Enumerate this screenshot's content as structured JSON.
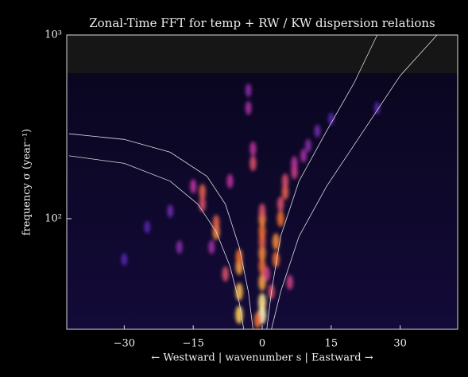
{
  "chart_data": {
    "type": "heatmap",
    "title": "Zonal-Time FFT for temp + RW / KW dispersion relations",
    "x_label": "← Westward | wavenumber s | Eastward →",
    "y_label": "frequency σ (year⁻¹)",
    "xlim": [
      -42.5,
      42.5
    ],
    "ylim": [
      25,
      1000
    ],
    "y_scale": "log",
    "xticks": [
      {
        "value": -30,
        "label": "−30"
      },
      {
        "value": -15,
        "label": "−15"
      },
      0,
      15,
      30
    ],
    "yticks": [
      {
        "value": 100,
        "label": "10²"
      },
      {
        "value": 1000,
        "label": "10³"
      }
    ],
    "intensity": {
      "x": [
        0,
        0,
        0,
        0,
        0,
        0,
        0,
        0,
        0,
        -5,
        -5,
        -5,
        -5,
        -8,
        -10,
        -10,
        -13,
        -13,
        -15,
        -2,
        -2,
        -3,
        -3,
        3,
        3,
        4,
        4,
        5,
        5,
        7,
        7,
        2,
        -1,
        1,
        -20,
        -25,
        10,
        12,
        -18,
        9,
        -7,
        6,
        -11,
        15,
        -30,
        25
      ],
      "y": [
        30,
        35,
        45,
        55,
        65,
        75,
        85,
        100,
        110,
        30,
        40,
        55,
        62,
        50,
        85,
        95,
        120,
        140,
        150,
        200,
        240,
        400,
        500,
        60,
        75,
        100,
        120,
        140,
        160,
        180,
        200,
        40,
        28,
        50,
        110,
        90,
        250,
        300,
        70,
        220,
        160,
        45,
        70,
        350,
        60,
        400
      ],
      "values": [
        1.0,
        0.95,
        0.8,
        0.7,
        0.75,
        0.65,
        0.7,
        0.75,
        0.6,
        0.9,
        0.85,
        0.8,
        0.7,
        0.6,
        0.75,
        0.65,
        0.6,
        0.65,
        0.5,
        0.6,
        0.5,
        0.45,
        0.4,
        0.7,
        0.75,
        0.7,
        0.6,
        0.65,
        0.6,
        0.55,
        0.5,
        0.6,
        0.7,
        0.55,
        0.35,
        0.3,
        0.4,
        0.35,
        0.4,
        0.45,
        0.5,
        0.55,
        0.45,
        0.3,
        0.3,
        0.3
      ]
    },
    "curves": [
      {
        "color": "#dddddd",
        "x": [
          -42,
          -30,
          -20,
          -12,
          -8,
          -5,
          -3,
          -2
        ],
        "y": [
          290,
          270,
          230,
          170,
          120,
          70,
          40,
          25
        ]
      },
      {
        "color": "#dddddd",
        "x": [
          -42,
          -30,
          -20,
          -14,
          -10,
          -7,
          -5,
          -4
        ],
        "y": [
          220,
          200,
          160,
          120,
          85,
          55,
          35,
          25
        ]
      },
      {
        "color": "#dddddd",
        "x": [
          1,
          2,
          4,
          8,
          14,
          20,
          25
        ],
        "y": [
          25,
          40,
          80,
          160,
          300,
          550,
          1000
        ]
      },
      {
        "color": "#dddddd",
        "x": [
          2,
          4,
          8,
          14,
          22,
          30,
          38
        ],
        "y": [
          25,
          40,
          80,
          150,
          300,
          600,
          1000
        ]
      }
    ]
  }
}
